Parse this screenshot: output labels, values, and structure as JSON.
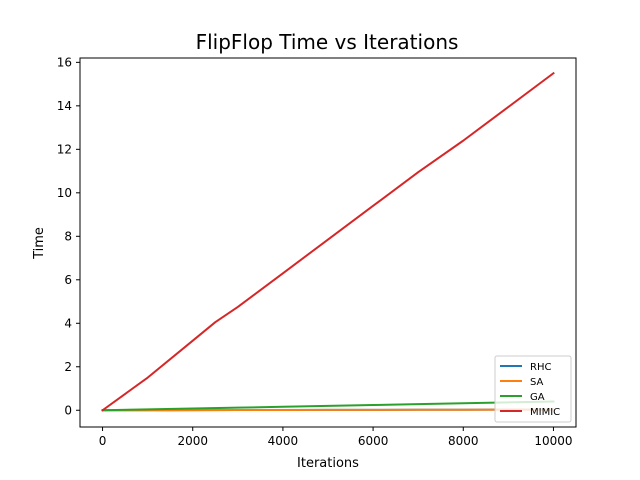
{
  "chart_data": {
    "type": "line",
    "title": "FlipFlop Time vs Iterations",
    "xlabel": "Iterations",
    "ylabel": "Time",
    "xlim": [
      -500,
      10500
    ],
    "ylim": [
      -0.77,
      16.2
    ],
    "xticks": [
      0,
      2000,
      4000,
      6000,
      8000,
      10000
    ],
    "yticks": [
      0,
      2,
      4,
      6,
      8,
      10,
      12,
      14,
      16
    ],
    "grid": false,
    "legend_position": "lower-right",
    "series": [
      {
        "name": "RHC",
        "color": "#1f77b4",
        "x": [
          0,
          1000,
          2000,
          3000,
          4000,
          5000,
          6000,
          7000,
          8000,
          9000,
          10000
        ],
        "y": [
          0,
          0.003,
          0.006,
          0.009,
          0.012,
          0.015,
          0.018,
          0.021,
          0.024,
          0.027,
          0.03
        ]
      },
      {
        "name": "SA",
        "color": "#ff7f0e",
        "x": [
          0,
          1000,
          2000,
          3000,
          4000,
          5000,
          6000,
          7000,
          8000,
          9000,
          10000
        ],
        "y": [
          0,
          0.003,
          0.006,
          0.009,
          0.012,
          0.015,
          0.018,
          0.021,
          0.024,
          0.027,
          0.03
        ]
      },
      {
        "name": "GA",
        "color": "#2ca02c",
        "x": [
          0,
          1000,
          2000,
          3000,
          4000,
          5000,
          6000,
          7000,
          8000,
          9000,
          10000
        ],
        "y": [
          0,
          0.04,
          0.08,
          0.12,
          0.16,
          0.2,
          0.24,
          0.28,
          0.32,
          0.36,
          0.4
        ]
      },
      {
        "name": "MIMIC",
        "color": "#d62728",
        "x": [
          0,
          1000,
          2000,
          2500,
          3000,
          4000,
          5000,
          6000,
          7000,
          8000,
          9000,
          10000
        ],
        "y": [
          0,
          1.5,
          3.2,
          4.05,
          4.75,
          6.3,
          7.85,
          9.4,
          10.95,
          12.4,
          13.95,
          15.5
        ]
      }
    ]
  }
}
